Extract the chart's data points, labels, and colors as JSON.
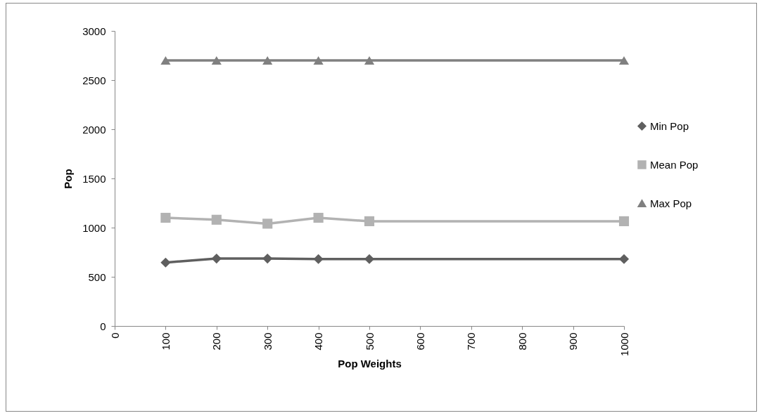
{
  "chart_data": {
    "type": "line",
    "xlabel": "Pop Weights",
    "ylabel": "Pop",
    "x": [
      100,
      200,
      300,
      400,
      500,
      1000
    ],
    "series": [
      {
        "name": "Min Pop",
        "color": "#5f5f5f",
        "marker": "diamond",
        "values": [
          645,
          685,
          685,
          680,
          680,
          680
        ]
      },
      {
        "name": "Mean Pop",
        "color": "#b2b2b2",
        "marker": "square",
        "values": [
          1100,
          1080,
          1040,
          1100,
          1065,
          1065
        ]
      },
      {
        "name": "Max Pop",
        "color": "#808080",
        "marker": "triangle",
        "values": [
          2700,
          2700,
          2700,
          2700,
          2700,
          2700
        ]
      }
    ],
    "xlim": [
      0,
      1000
    ],
    "xticks": [
      0,
      100,
      200,
      300,
      400,
      500,
      600,
      700,
      800,
      900,
      1000
    ],
    "ylim": [
      0,
      3000
    ],
    "yticks": [
      0,
      500,
      1000,
      1500,
      2000,
      2500,
      3000
    ],
    "grid": false,
    "legend": "right"
  }
}
